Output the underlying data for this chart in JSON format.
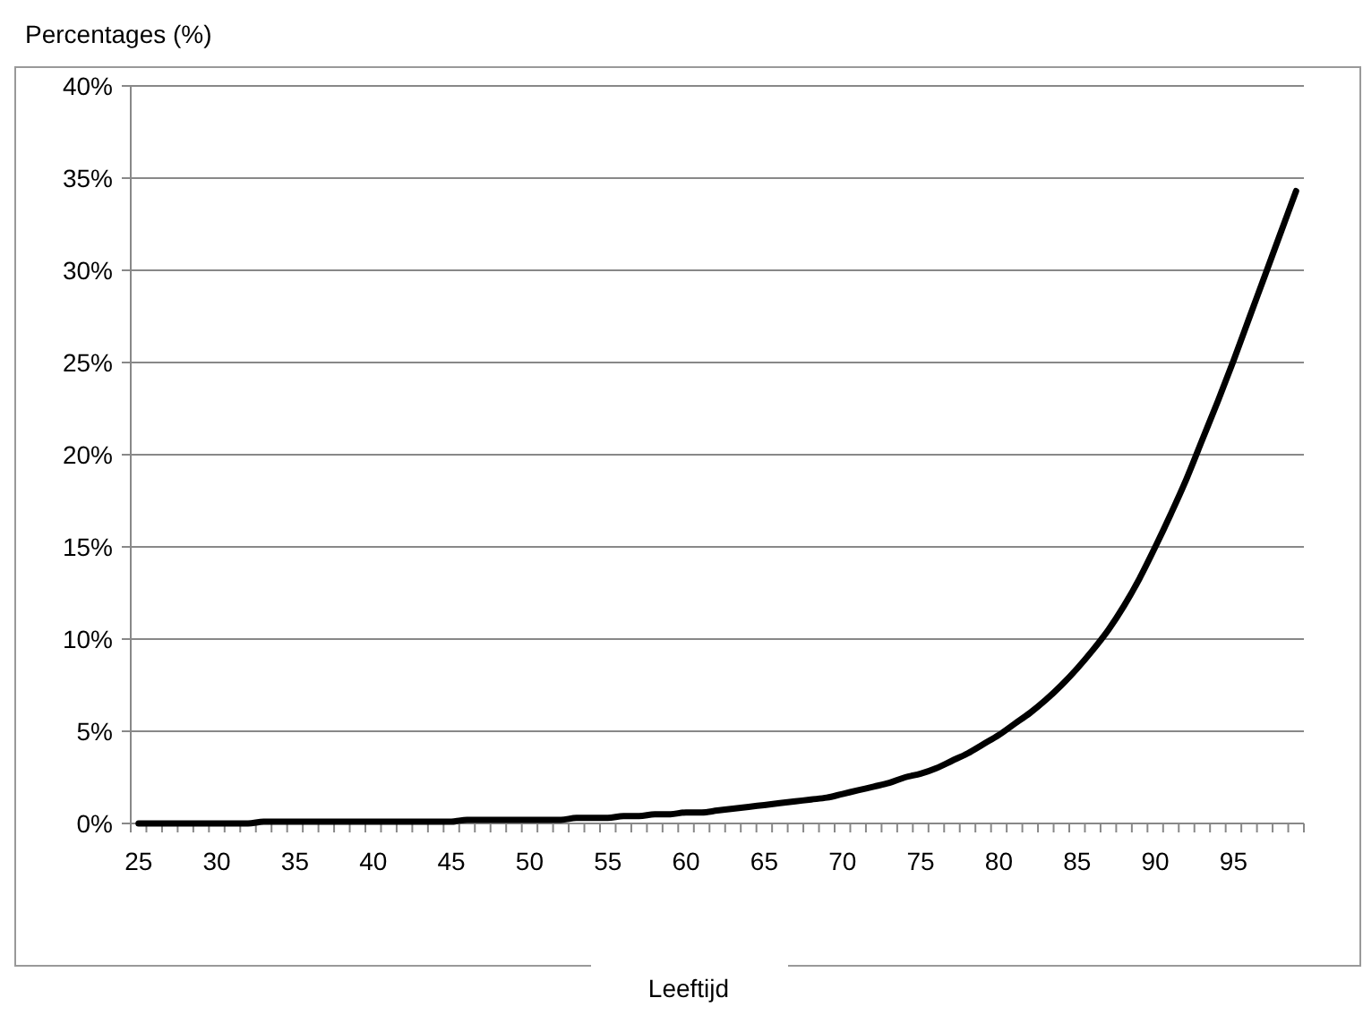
{
  "chart_data": {
    "type": "line",
    "ylabel": "Percentages (%)",
    "xlabel": "Leeftijd",
    "categories": [
      "25",
      null,
      null,
      null,
      null,
      "30",
      null,
      null,
      null,
      null,
      "35",
      null,
      null,
      null,
      null,
      "40",
      null,
      null,
      null,
      null,
      "45",
      null,
      null,
      null,
      null,
      "50",
      null,
      null,
      null,
      null,
      "55",
      null,
      null,
      null,
      null,
      "60",
      null,
      null,
      null,
      null,
      "65",
      null,
      null,
      null,
      null,
      "70",
      null,
      null,
      null,
      null,
      "75",
      null,
      null,
      null,
      null,
      "80",
      null,
      null,
      null,
      null,
      "85",
      null,
      null,
      null,
      null,
      "90",
      null,
      null,
      null,
      null,
      "95",
      null,
      null,
      null,
      null
    ],
    "series": [
      {
        "color": "#000000",
        "values": [
          0,
          0,
          0,
          0,
          0,
          0,
          0,
          0,
          0.1,
          0.1,
          0.1,
          0.1,
          0.1,
          0.1,
          0.1,
          0.1,
          0.1,
          0.1,
          0.1,
          0.1,
          0.1,
          0.2,
          0.2,
          0.2,
          0.2,
          0.2,
          0.2,
          0.2,
          0.3,
          0.3,
          0.3,
          0.4,
          0.4,
          0.5,
          0.5,
          0.6,
          0.6,
          0.7,
          0.8,
          0.9,
          1.0,
          1.1,
          1.2,
          1.3,
          1.4,
          1.6,
          1.8,
          2.0,
          2.2,
          2.5,
          2.7,
          3.0,
          3.4,
          3.8,
          4.3,
          4.8,
          5.4,
          6.0,
          6.7,
          7.5,
          8.4,
          9.4,
          10.5,
          11.8,
          13.3,
          15.0,
          16.8,
          18.7,
          20.8,
          22.9,
          25.1,
          27.4,
          29.7,
          32.0,
          34.3
        ]
      }
    ],
    "ylim": [
      0,
      40
    ],
    "yticks": [
      {
        "value": 0,
        "label": "0%"
      },
      {
        "value": 5,
        "label": "5%"
      },
      {
        "value": 10,
        "label": "10%"
      },
      {
        "value": 15,
        "label": "15%"
      },
      {
        "value": 20,
        "label": "20%"
      },
      {
        "value": 25,
        "label": "25%"
      },
      {
        "value": 30,
        "label": "30%"
      },
      {
        "value": 35,
        "label": "35%"
      },
      {
        "value": 40,
        "label": "40%"
      }
    ],
    "grid": "y",
    "marker": "none",
    "line_style": "solid"
  }
}
